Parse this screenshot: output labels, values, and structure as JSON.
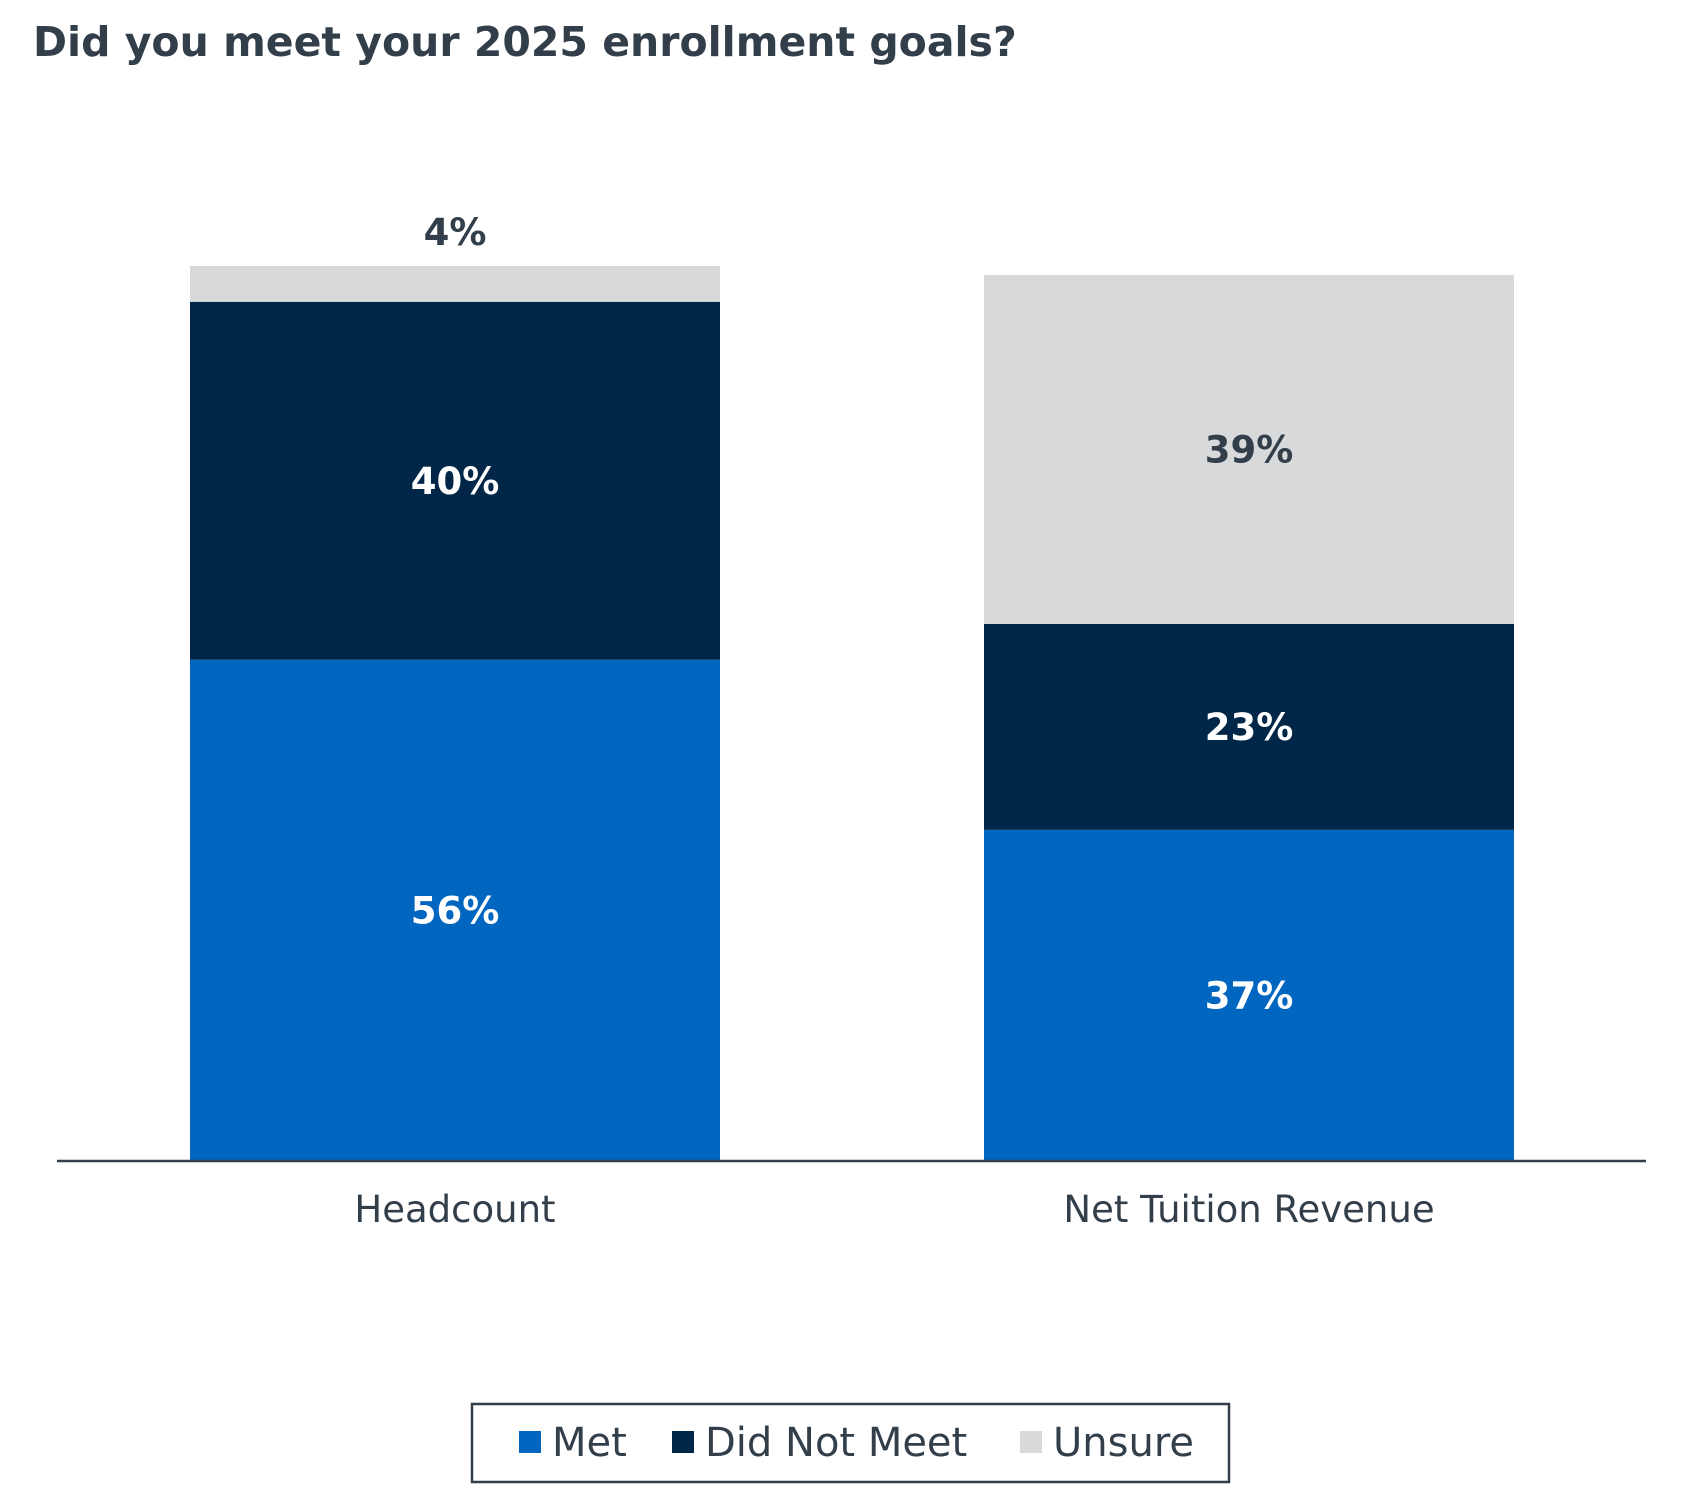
{
  "chart_data": {
    "type": "bar",
    "stacked": true,
    "title": "Did you meet your 2025 enrollment goals?",
    "xlabel": "",
    "ylabel": "",
    "ylim": [
      0,
      100
    ],
    "grid": false,
    "legend_position": "bottom",
    "categories": [
      "Headcount",
      "Net Tuition Revenue"
    ],
    "series": [
      {
        "name": "Met",
        "values": [
          56,
          37
        ],
        "labels": [
          "56%",
          "37%"
        ],
        "color": "#0066C0",
        "label_color": "#FFFFFF"
      },
      {
        "name": "Did Not Meet",
        "values": [
          40,
          23
        ],
        "labels": [
          "40%",
          "23%"
        ],
        "color": "#002747",
        "label_color": "#FFFFFF"
      },
      {
        "name": "Unsure",
        "values": [
          4,
          39
        ],
        "labels": [
          "4%",
          "39%"
        ],
        "color": "#D8D9DB",
        "label_color": "#323F4B"
      }
    ]
  },
  "colors": {
    "text": "#323F4B",
    "axis": "#323F4B",
    "legend_border": "#323F4B"
  }
}
